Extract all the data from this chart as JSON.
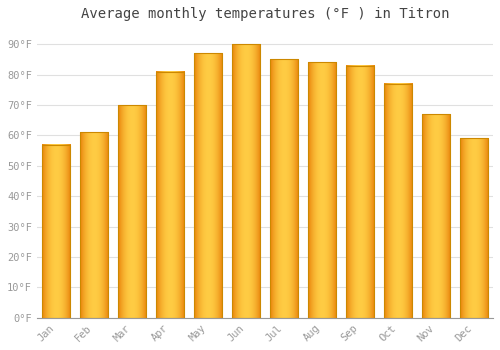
{
  "title": "Average monthly temperatures (°F ) in Titron",
  "months": [
    "Jan",
    "Feb",
    "Mar",
    "Apr",
    "May",
    "Jun",
    "Jul",
    "Aug",
    "Sep",
    "Oct",
    "Nov",
    "Dec"
  ],
  "values": [
    57,
    61,
    70,
    81,
    87,
    90,
    85,
    84,
    83,
    77,
    67,
    59
  ],
  "bar_color_left": "#E8820A",
  "bar_color_center": "#FFCC44",
  "bar_color_right": "#E8820A",
  "bar_edge_color": "#CC8800",
  "ylim": [
    0,
    95
  ],
  "yticks": [
    0,
    10,
    20,
    30,
    40,
    50,
    60,
    70,
    80,
    90
  ],
  "ytick_labels": [
    "0°F",
    "10°F",
    "20°F",
    "30°F",
    "40°F",
    "50°F",
    "60°F",
    "70°F",
    "80°F",
    "90°F"
  ],
  "background_color": "#FFFFFF",
  "grid_color": "#E0E0E0",
  "title_fontsize": 10,
  "tick_fontsize": 7.5,
  "font_color": "#999999",
  "bar_width": 0.75,
  "figsize": [
    5.0,
    3.5
  ],
  "dpi": 100
}
